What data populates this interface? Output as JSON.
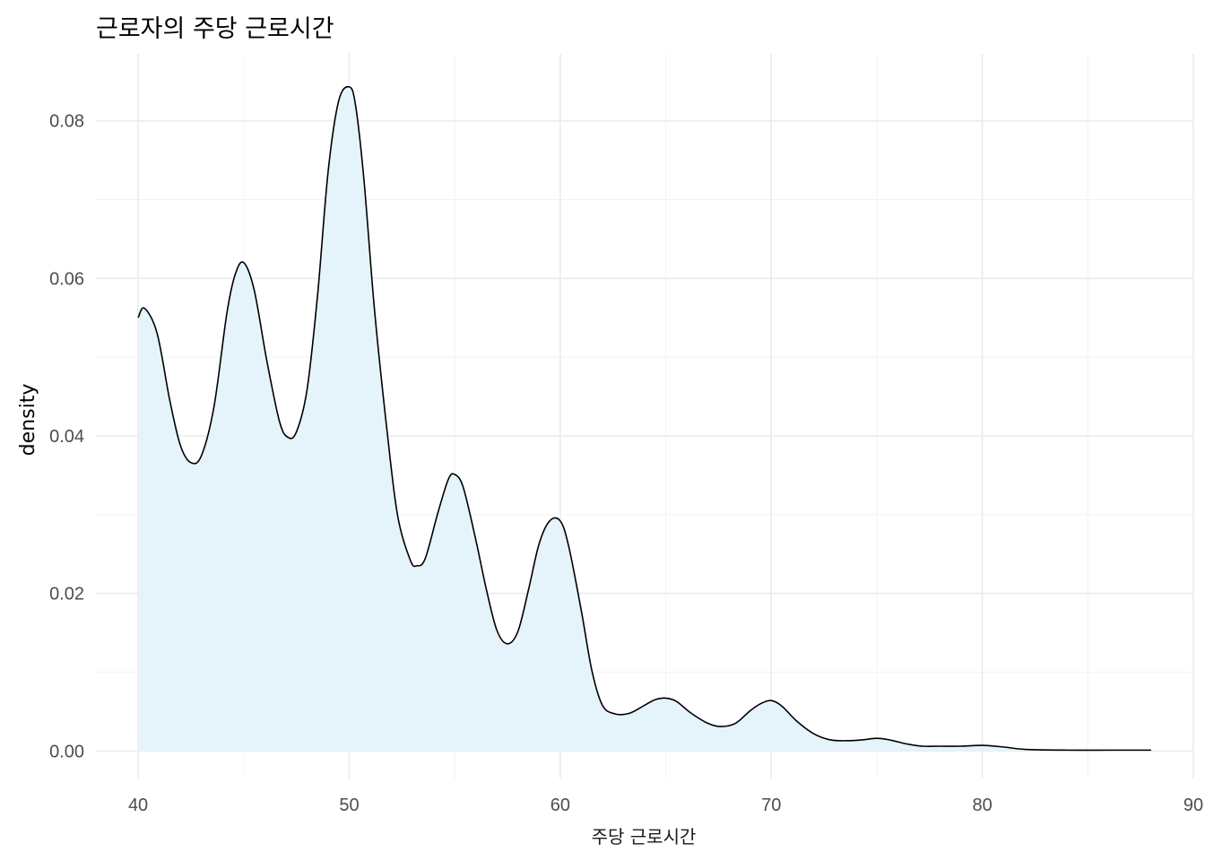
{
  "chart_data": {
    "type": "area",
    "title": "근로자의 주당 근로시간",
    "xlabel": "주당 근로시간",
    "ylabel": "density",
    "xlim": [
      38,
      90
    ],
    "ylim": [
      -0.0035,
      0.0885
    ],
    "x_ticks": [
      40,
      50,
      60,
      70,
      80,
      90
    ],
    "x_tick_labels": [
      "40",
      "50",
      "60",
      "70",
      "80",
      "90"
    ],
    "y_ticks": [
      0,
      0.02,
      0.04,
      0.06,
      0.08
    ],
    "y_tick_labels": [
      "0.00",
      "0.02",
      "0.04",
      "0.06",
      "0.08"
    ],
    "grid": true,
    "fill_color": "#e5f3fa",
    "line_color": "#000000",
    "series": [
      {
        "x": [
          40,
          40.3,
          40.9,
          41.5,
          42.0,
          42.5,
          43.0,
          43.6,
          44.2,
          44.6,
          45.0,
          45.5,
          46.1,
          46.7,
          47.1,
          47.5,
          48.0,
          48.5,
          49.0,
          49.5,
          50.0,
          50.3,
          50.7,
          51.2,
          51.8,
          52.3,
          52.9,
          53.2,
          53.6,
          54.2,
          54.7,
          55.0,
          55.4,
          56.0,
          56.5,
          57.0,
          57.5,
          58.0,
          58.5,
          59.0,
          59.5,
          60.0,
          60.4,
          61.0,
          61.5,
          62.0,
          62.6,
          63.3,
          64.0,
          64.5,
          65.0,
          65.5,
          66.2,
          67.0,
          67.6,
          68.3,
          69.0,
          69.5,
          70.0,
          70.5,
          71.2,
          72.0,
          72.8,
          73.6,
          74.3,
          75.0,
          75.6,
          76.4,
          77.2,
          78.0,
          79.0,
          80.0,
          81.0,
          82.0,
          84.0,
          86.0,
          88.0
        ],
        "y": [
          0.055,
          0.0562,
          0.053,
          0.0445,
          0.0388,
          0.0366,
          0.0375,
          0.0438,
          0.0555,
          0.0605,
          0.062,
          0.0585,
          0.0495,
          0.0418,
          0.0398,
          0.0405,
          0.0458,
          0.0578,
          0.0735,
          0.0825,
          0.0843,
          0.082,
          0.0725,
          0.056,
          0.0405,
          0.0298,
          0.0242,
          0.0235,
          0.0244,
          0.0302,
          0.0345,
          0.0351,
          0.0335,
          0.0268,
          0.0205,
          0.0153,
          0.0136,
          0.0152,
          0.0205,
          0.0263,
          0.0292,
          0.0292,
          0.026,
          0.0178,
          0.0102,
          0.0058,
          0.0047,
          0.0048,
          0.0058,
          0.0065,
          0.0067,
          0.0063,
          0.0048,
          0.0035,
          0.0031,
          0.0035,
          0.0051,
          0.006,
          0.0064,
          0.0057,
          0.0038,
          0.0022,
          0.0014,
          0.0013,
          0.0014,
          0.0016,
          0.0014,
          0.0009,
          0.0006,
          0.0006,
          0.0006,
          0.0007,
          0.0005,
          0.0002,
          0.0001,
          0.0001,
          0.0001
        ]
      }
    ]
  }
}
